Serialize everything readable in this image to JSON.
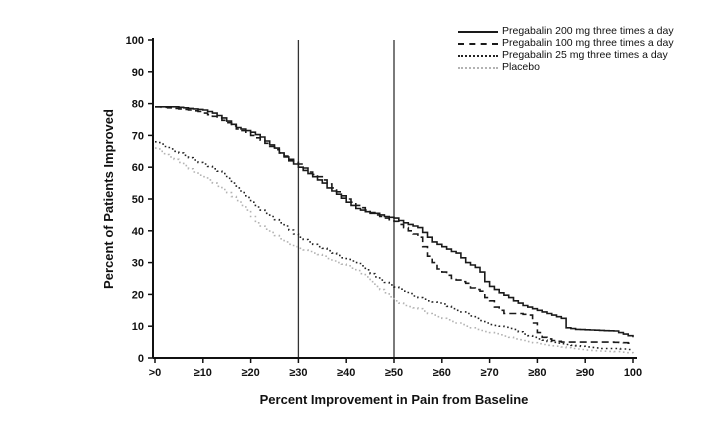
{
  "chart_data": {
    "type": "line",
    "title": "",
    "xlabel": "Percent Improvement in Pain from Baseline",
    "ylabel": "Percent of Patients Improved",
    "xlim": [
      0,
      100
    ],
    "ylim": [
      0,
      100
    ],
    "grid": false,
    "legend_position": "top-right-inside",
    "x_ticks": [
      {
        "value": 0,
        "label": ">0"
      },
      {
        "value": 10,
        "label": "≥10"
      },
      {
        "value": 20,
        "label": "≥20"
      },
      {
        "value": 30,
        "label": "≥30"
      },
      {
        "value": 40,
        "label": "≥40"
      },
      {
        "value": 50,
        "label": "≥50"
      },
      {
        "value": 60,
        "label": "≥60"
      },
      {
        "value": 70,
        "label": "≥70"
      },
      {
        "value": 80,
        "label": "≥80"
      },
      {
        "value": 90,
        "label": "≥90"
      },
      {
        "value": 100,
        "label": "100"
      }
    ],
    "y_ticks": [
      {
        "value": 0,
        "label": "0"
      },
      {
        "value": 10,
        "label": "10"
      },
      {
        "value": 20,
        "label": "20"
      },
      {
        "value": 30,
        "label": "30"
      },
      {
        "value": 40,
        "label": "40"
      },
      {
        "value": 50,
        "label": "50"
      },
      {
        "value": 60,
        "label": "60"
      },
      {
        "value": 70,
        "label": "70"
      },
      {
        "value": 80,
        "label": "80"
      },
      {
        "value": 90,
        "label": "90"
      },
      {
        "value": 100,
        "label": "100"
      }
    ],
    "reference_lines_x": [
      30,
      50
    ],
    "axis_color": "#111111",
    "reference_line_color": "#333333",
    "series": [
      {
        "name": "Pregabalin 200 mg three times a day",
        "line_style": "solid",
        "color": "#1a1a1a",
        "points": [
          [
            0,
            79
          ],
          [
            4,
            79
          ],
          [
            7,
            78.5
          ],
          [
            10,
            78
          ],
          [
            12,
            77
          ],
          [
            14,
            75.5
          ],
          [
            15,
            74.5
          ],
          [
            17,
            72.5
          ],
          [
            19,
            71.5
          ],
          [
            20,
            71
          ],
          [
            22,
            69.5
          ],
          [
            24,
            67
          ],
          [
            25,
            66
          ],
          [
            26,
            64.5
          ],
          [
            28,
            62
          ],
          [
            30,
            60
          ],
          [
            32,
            58
          ],
          [
            34,
            56
          ],
          [
            35,
            55
          ],
          [
            36,
            53.5
          ],
          [
            38,
            51.5
          ],
          [
            40,
            49
          ],
          [
            42,
            47
          ],
          [
            44,
            46
          ],
          [
            46,
            45.5
          ],
          [
            48,
            44.5
          ],
          [
            50,
            44
          ],
          [
            52,
            42.5
          ],
          [
            54,
            41.5
          ],
          [
            55,
            41
          ],
          [
            56,
            39.5
          ],
          [
            58,
            36.5
          ],
          [
            60,
            35
          ],
          [
            62,
            33.5
          ],
          [
            63,
            33
          ],
          [
            65,
            30
          ],
          [
            67,
            28.5
          ],
          [
            68,
            27
          ],
          [
            69,
            24
          ],
          [
            70,
            22.5
          ],
          [
            72,
            20.5
          ],
          [
            74,
            19
          ],
          [
            75,
            18
          ],
          [
            77,
            16.5
          ],
          [
            79,
            15.5
          ],
          [
            80,
            15
          ],
          [
            82,
            14
          ],
          [
            84,
            13
          ],
          [
            85,
            12.5
          ],
          [
            86,
            9.5
          ],
          [
            88,
            9
          ],
          [
            91,
            8.8
          ],
          [
            94,
            8.6
          ],
          [
            96,
            8.5
          ],
          [
            98,
            7.5
          ],
          [
            100,
            6.5
          ]
        ]
      },
      {
        "name": "Pregabalin 100 mg three times a day",
        "line_style": "dashed",
        "color": "#1a1a1a",
        "points": [
          [
            0,
            79
          ],
          [
            4,
            78.5
          ],
          [
            7,
            78
          ],
          [
            9,
            77.5
          ],
          [
            11,
            76.5
          ],
          [
            13,
            75.5
          ],
          [
            15,
            74
          ],
          [
            17,
            72
          ],
          [
            19,
            71
          ],
          [
            20,
            70
          ],
          [
            22,
            68.5
          ],
          [
            24,
            66.5
          ],
          [
            26,
            64.5
          ],
          [
            28,
            62.5
          ],
          [
            29,
            61.5
          ],
          [
            30,
            61
          ],
          [
            32,
            58.5
          ],
          [
            34,
            57
          ],
          [
            35,
            56
          ],
          [
            37,
            53.5
          ],
          [
            39,
            51
          ],
          [
            40,
            50
          ],
          [
            42,
            48
          ],
          [
            44,
            46.5
          ],
          [
            45,
            45.5
          ],
          [
            47,
            44.5
          ],
          [
            49,
            43.5
          ],
          [
            50,
            43
          ],
          [
            52,
            41
          ],
          [
            54,
            39
          ],
          [
            55,
            38
          ],
          [
            56,
            35
          ],
          [
            57,
            32
          ],
          [
            58,
            30
          ],
          [
            59,
            28
          ],
          [
            60,
            27
          ],
          [
            62,
            25
          ],
          [
            64,
            24
          ],
          [
            65,
            23.5
          ],
          [
            66,
            22
          ],
          [
            68,
            21
          ],
          [
            69,
            19
          ],
          [
            70,
            18
          ],
          [
            71,
            16
          ],
          [
            72,
            15
          ],
          [
            73,
            14
          ],
          [
            76,
            14
          ],
          [
            78,
            13.5
          ],
          [
            79,
            11
          ],
          [
            80,
            8
          ],
          [
            81,
            6.5
          ],
          [
            83,
            5.5
          ],
          [
            85,
            5
          ],
          [
            90,
            5
          ],
          [
            95,
            5
          ],
          [
            98,
            4.8
          ],
          [
            100,
            4.5
          ]
        ]
      },
      {
        "name": "Pregabalin 25 mg three times a day",
        "line_style": "dotted",
        "color": "#222222",
        "points": [
          [
            0,
            68
          ],
          [
            2,
            66.5
          ],
          [
            4,
            65
          ],
          [
            5,
            64.5
          ],
          [
            7,
            63
          ],
          [
            9,
            61.5
          ],
          [
            10,
            61
          ],
          [
            12,
            59.5
          ],
          [
            14,
            58
          ],
          [
            15,
            56.5
          ],
          [
            16,
            55
          ],
          [
            18,
            52
          ],
          [
            20,
            49
          ],
          [
            21,
            47.5
          ],
          [
            23,
            45.5
          ],
          [
            25,
            43.5
          ],
          [
            27,
            41.5
          ],
          [
            29,
            39
          ],
          [
            30,
            38
          ],
          [
            32,
            36.5
          ],
          [
            34,
            35
          ],
          [
            35,
            34.5
          ],
          [
            37,
            33
          ],
          [
            39,
            31.5
          ],
          [
            40,
            31
          ],
          [
            42,
            30
          ],
          [
            43,
            29
          ],
          [
            45,
            26.5
          ],
          [
            47,
            24.5
          ],
          [
            49,
            23
          ],
          [
            50,
            22.3
          ],
          [
            52,
            21
          ],
          [
            54,
            19.5
          ],
          [
            55,
            19
          ],
          [
            57,
            18
          ],
          [
            59,
            17.3
          ],
          [
            60,
            17
          ],
          [
            62,
            15.5
          ],
          [
            64,
            14.5
          ],
          [
            65,
            14
          ],
          [
            67,
            12.5
          ],
          [
            69,
            11
          ],
          [
            70,
            10.5
          ],
          [
            72,
            10
          ],
          [
            74,
            9.3
          ],
          [
            75,
            9
          ],
          [
            77,
            7.5
          ],
          [
            79,
            6.5
          ],
          [
            80,
            6
          ],
          [
            82,
            5.2
          ],
          [
            84,
            4.7
          ],
          [
            85,
            4.5
          ],
          [
            87,
            4
          ],
          [
            90,
            3.5
          ],
          [
            93,
            3
          ],
          [
            96,
            3
          ],
          [
            100,
            2.5
          ]
        ]
      },
      {
        "name": "Placebo",
        "line_style": "dotted",
        "color": "#b3b3b3",
        "points": [
          [
            0,
            66
          ],
          [
            2,
            64
          ],
          [
            4,
            62.5
          ],
          [
            5,
            61.5
          ],
          [
            7,
            59.5
          ],
          [
            9,
            57.5
          ],
          [
            10,
            57
          ],
          [
            12,
            55
          ],
          [
            14,
            53
          ],
          [
            15,
            52
          ],
          [
            17,
            49.5
          ],
          [
            19,
            46.5
          ],
          [
            20,
            44.5
          ],
          [
            21,
            42.5
          ],
          [
            23,
            40.5
          ],
          [
            25,
            38.5
          ],
          [
            27,
            36.5
          ],
          [
            29,
            35
          ],
          [
            30,
            34.5
          ],
          [
            32,
            33.5
          ],
          [
            34,
            32.5
          ],
          [
            35,
            32
          ],
          [
            37,
            30.5
          ],
          [
            39,
            29.5
          ],
          [
            40,
            29
          ],
          [
            42,
            27.5
          ],
          [
            44,
            25.5
          ],
          [
            45,
            24
          ],
          [
            46,
            22.5
          ],
          [
            48,
            20.5
          ],
          [
            50,
            18
          ],
          [
            52,
            16.5
          ],
          [
            54,
            15.8
          ],
          [
            55,
            15.5
          ],
          [
            57,
            14
          ],
          [
            59,
            13
          ],
          [
            60,
            12.5
          ],
          [
            62,
            11.5
          ],
          [
            64,
            10.5
          ],
          [
            65,
            10
          ],
          [
            67,
            9
          ],
          [
            69,
            8.3
          ],
          [
            70,
            8
          ],
          [
            72,
            7.3
          ],
          [
            74,
            6.5
          ],
          [
            75,
            6
          ],
          [
            77,
            5.5
          ],
          [
            79,
            4.8
          ],
          [
            80,
            4.5
          ],
          [
            82,
            4
          ],
          [
            84,
            3.7
          ],
          [
            85,
            3.5
          ],
          [
            87,
            3
          ],
          [
            90,
            2.5
          ],
          [
            93,
            2.2
          ],
          [
            96,
            2
          ],
          [
            100,
            1.5
          ]
        ]
      }
    ]
  }
}
